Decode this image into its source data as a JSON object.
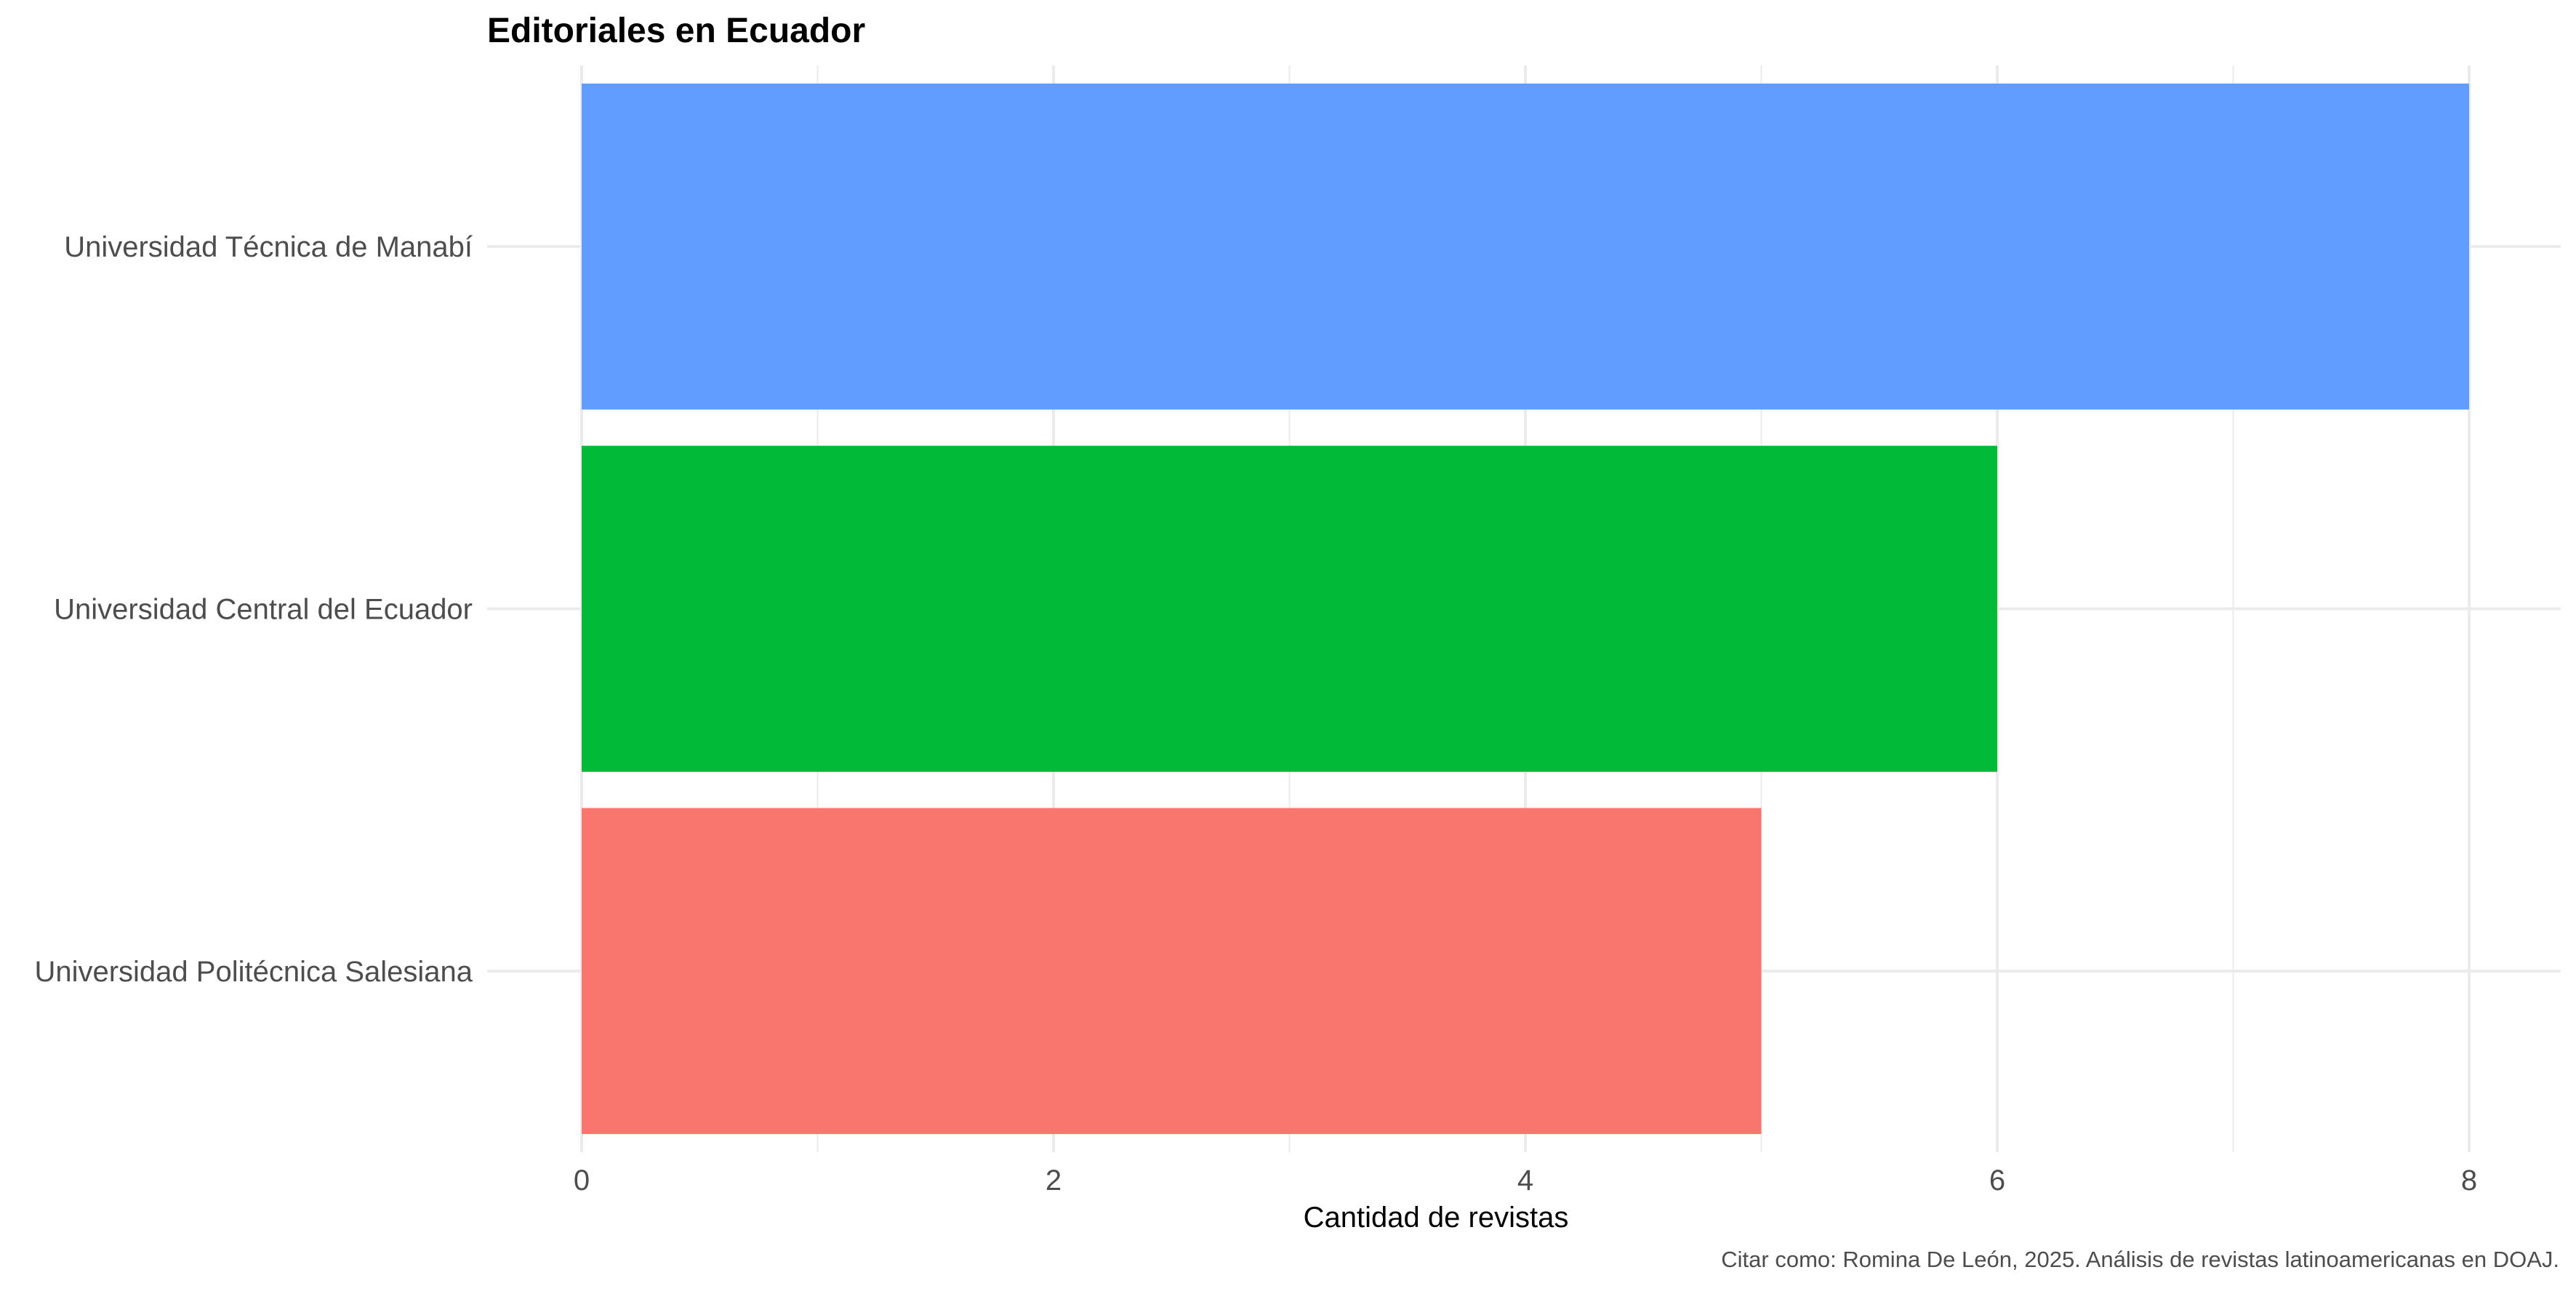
{
  "chart_data": {
    "type": "bar",
    "orientation": "horizontal",
    "title": "Editoriales en Ecuador",
    "xlabel": "Cantidad de revistas",
    "ylabel": "",
    "caption": "Citar como: Romina De León, 2025. Análisis de revistas latinoamericanas en DOAJ.",
    "categories": [
      "Universidad Técnica de Manabí",
      "Universidad Central del Ecuador",
      "Universidad Politécnica Salesiana"
    ],
    "values": [
      8,
      6,
      5
    ],
    "colors": [
      "#619CFF",
      "#00BA38",
      "#F8766D"
    ],
    "xlim": [
      0,
      8.4
    ],
    "x_ticks": [
      0,
      2,
      4,
      6,
      8
    ],
    "x_minor_ticks": [
      1,
      3,
      5,
      7
    ],
    "grid": true,
    "legend": "none"
  }
}
